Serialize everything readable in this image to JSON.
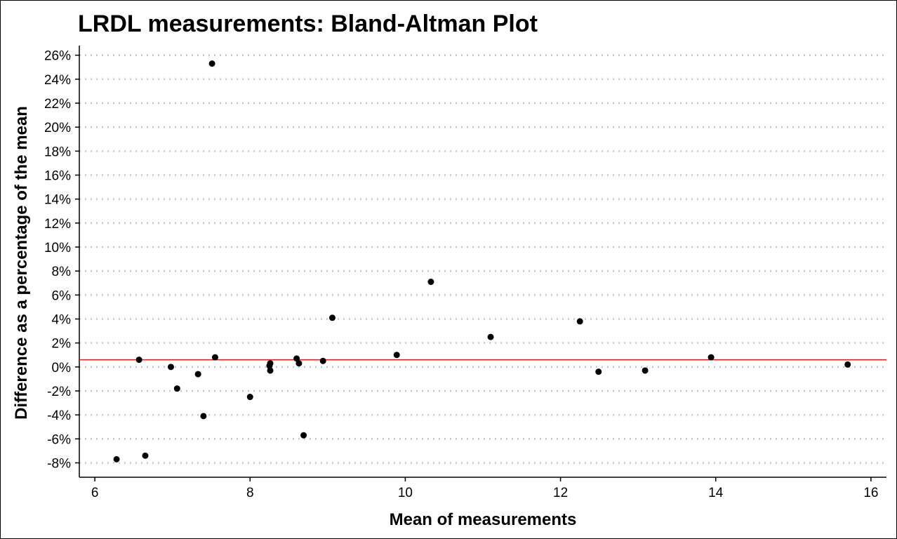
{
  "chart_data": {
    "type": "scatter",
    "title": "LRDL measurements: Bland-Altman Plot",
    "xlabel": "Mean of measurements",
    "ylabel": "Difference as a percentage of the mean",
    "xlim": [
      5.8,
      16.2
    ],
    "ylim": [
      -9.2,
      26.8
    ],
    "x_ticks": [
      6,
      8,
      10,
      12,
      14,
      16
    ],
    "y_ticks": [
      -8,
      -6,
      -4,
      -2,
      0,
      2,
      4,
      6,
      8,
      10,
      12,
      14,
      16,
      18,
      20,
      22,
      24,
      26
    ],
    "y_tick_suffix": "%",
    "grid": "horizontal-dotted",
    "mean_line": {
      "y": 0.6,
      "color": "#e41a1c"
    },
    "point_color": "#000000",
    "points": [
      {
        "x": 6.28,
        "y": -7.7
      },
      {
        "x": 6.57,
        "y": 0.6
      },
      {
        "x": 6.65,
        "y": -7.4
      },
      {
        "x": 6.98,
        "y": 0.0
      },
      {
        "x": 7.06,
        "y": -1.8
      },
      {
        "x": 7.33,
        "y": -0.6
      },
      {
        "x": 7.4,
        "y": -4.1
      },
      {
        "x": 7.51,
        "y": 25.3
      },
      {
        "x": 7.55,
        "y": 0.8
      },
      {
        "x": 8.0,
        "y": -2.5
      },
      {
        "x": 8.25,
        "y": 0.1
      },
      {
        "x": 8.26,
        "y": -0.3
      },
      {
        "x": 8.26,
        "y": 0.3
      },
      {
        "x": 8.6,
        "y": 0.7
      },
      {
        "x": 8.63,
        "y": 0.3
      },
      {
        "x": 8.69,
        "y": -5.7
      },
      {
        "x": 8.94,
        "y": 0.5
      },
      {
        "x": 9.06,
        "y": 4.1
      },
      {
        "x": 9.89,
        "y": 1.0
      },
      {
        "x": 10.33,
        "y": 7.1
      },
      {
        "x": 11.1,
        "y": 2.5
      },
      {
        "x": 12.25,
        "y": 3.8
      },
      {
        "x": 12.49,
        "y": -0.4
      },
      {
        "x": 13.09,
        "y": -0.3
      },
      {
        "x": 13.94,
        "y": 0.8
      },
      {
        "x": 15.7,
        "y": 0.2
      }
    ]
  }
}
